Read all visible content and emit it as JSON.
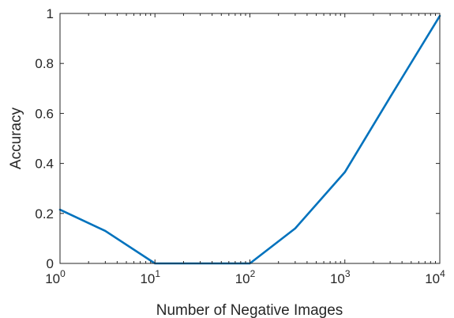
{
  "chart_data": {
    "type": "line",
    "xlabel": "Number of Negative Images",
    "ylabel": "Accuracy",
    "x_scale": "log",
    "xlim": [
      1,
      10000
    ],
    "ylim": [
      0,
      1
    ],
    "grid": false,
    "line_color": "#0072BD",
    "x_ticks": [
      {
        "value": 1,
        "base": "10",
        "exp": "0"
      },
      {
        "value": 10,
        "base": "10",
        "exp": "1"
      },
      {
        "value": 100,
        "base": "10",
        "exp": "2"
      },
      {
        "value": 1000,
        "base": "10",
        "exp": "3"
      },
      {
        "value": 10000,
        "base": "10",
        "exp": "4"
      }
    ],
    "y_ticks": [
      {
        "value": 0,
        "label": "0"
      },
      {
        "value": 0.2,
        "label": "0.2"
      },
      {
        "value": 0.4,
        "label": "0.4"
      },
      {
        "value": 0.6,
        "label": "0.6"
      },
      {
        "value": 0.8,
        "label": "0.8"
      },
      {
        "value": 1,
        "label": "1"
      }
    ],
    "series": [
      {
        "x": [
          1,
          3,
          10,
          30,
          100,
          300,
          1000,
          3000,
          10000
        ],
        "y": [
          0.215,
          0.13,
          0.0,
          0.0,
          0.0,
          0.14,
          0.365,
          0.665,
          0.99
        ]
      }
    ]
  }
}
